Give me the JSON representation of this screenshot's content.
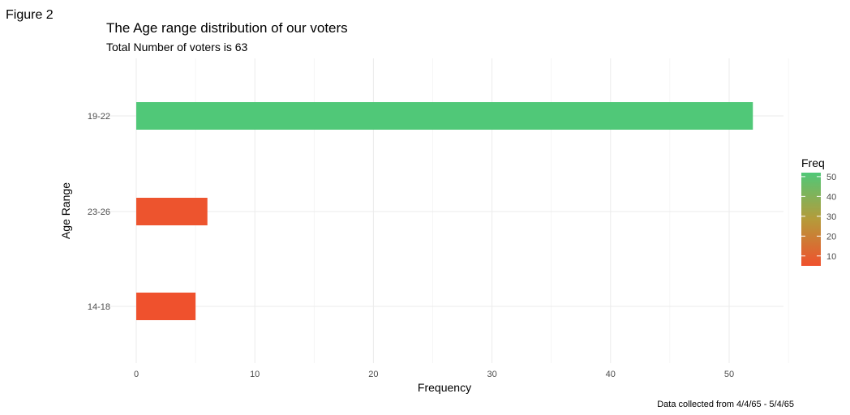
{
  "figure_label": "Figure 2",
  "chart_data": {
    "type": "bar",
    "orientation": "horizontal",
    "title": "The Age range distribution of our voters",
    "subtitle": "Total Number of voters is 63",
    "xlabel": "Frequency",
    "ylabel": "Age Range",
    "caption": "Data collected from 4/4/65 - 5/4/65",
    "categories": [
      "14-18",
      "23-26",
      "19-22"
    ],
    "values": [
      5,
      6,
      52
    ],
    "xlim": [
      0,
      55
    ],
    "xticks": [
      0,
      10,
      20,
      30,
      40,
      50
    ],
    "grid": true,
    "legend": {
      "title": "Freq",
      "placement": "right",
      "type": "colorbar",
      "range": [
        5,
        52
      ],
      "ticks": [
        10,
        20,
        30,
        40,
        50
      ],
      "low_color": "#ef512d",
      "high_color": "#50c878"
    }
  }
}
